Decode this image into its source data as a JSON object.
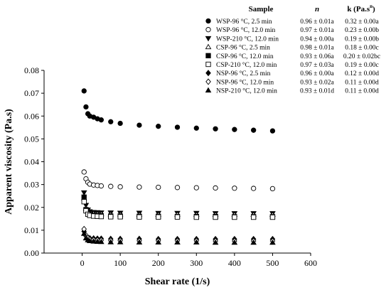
{
  "chart_data": {
    "type": "scatter",
    "title": "",
    "xlabel": "Shear rate (1/s)",
    "ylabel": "Apparent viscosity (Pa.s)",
    "xlim": [
      -100,
      600
    ],
    "ylim": [
      0,
      0.08
    ],
    "xticks": [
      "0",
      "100",
      "200",
      "300",
      "400",
      "500",
      "600"
    ],
    "yticks": [
      "0.00",
      "0.01",
      "0.02",
      "0.03",
      "0.04",
      "0.05",
      "0.06",
      "0.07",
      "0.08"
    ],
    "legend": {
      "placement": "top-right",
      "headers": {
        "sample": "Sample",
        "n": "n",
        "k_base": "k (Pa.s",
        "k_sup": "n",
        "k_close": ")"
      }
    },
    "series": [
      {
        "name": "WSP-96 °C, 2.5 min",
        "n": "0.96 ± 0.01a",
        "k": "0.32 ± 0.00a",
        "marker": "circle",
        "filled": true,
        "x": [
          5,
          10,
          15,
          20,
          30,
          40,
          50,
          75,
          100,
          150,
          200,
          250,
          300,
          350,
          400,
          450,
          500
        ],
        "y": [
          0.071,
          0.064,
          0.061,
          0.06,
          0.0595,
          0.0588,
          0.0583,
          0.0575,
          0.0568,
          0.056,
          0.0555,
          0.0551,
          0.0547,
          0.0544,
          0.0541,
          0.0538,
          0.0535
        ]
      },
      {
        "name": "WSP-96 °C, 12.0 min",
        "n": "0.97 ± 0.01a",
        "k": "0.23 ± 0.00b",
        "marker": "circle",
        "filled": false,
        "x": [
          5,
          10,
          15,
          20,
          30,
          40,
          50,
          75,
          100,
          150,
          200,
          250,
          300,
          350,
          400,
          450,
          500
        ],
        "y": [
          0.0355,
          0.0325,
          0.031,
          0.0302,
          0.0298,
          0.0296,
          0.0294,
          0.0292,
          0.029,
          0.0289,
          0.0288,
          0.0287,
          0.0286,
          0.0285,
          0.0284,
          0.0283,
          0.0282
        ]
      },
      {
        "name": "WSP-210 °C, 12.0 min",
        "n": "0.94 ± 0.00a",
        "k": "0.19 ± 0.00b",
        "marker": "triangle-down",
        "filled": true,
        "x": [
          5,
          10,
          15,
          20,
          30,
          40,
          50,
          75,
          100,
          150,
          200,
          250,
          300,
          350,
          400,
          450,
          500
        ],
        "y": [
          0.0265,
          0.021,
          0.019,
          0.0182,
          0.0179,
          0.0178,
          0.0177,
          0.0177,
          0.0176,
          0.0176,
          0.0175,
          0.0175,
          0.0175,
          0.0174,
          0.0174,
          0.0174,
          0.0174
        ]
      },
      {
        "name": "CSP-96 °C, 2.5 min",
        "n": "0.98 ± 0.01a",
        "k": "0.18 ± 0.00c",
        "marker": "triangle-up",
        "filled": false,
        "x": [
          5,
          10,
          15,
          20,
          30,
          40,
          50,
          75,
          100,
          150,
          200,
          250,
          300,
          350,
          400,
          450,
          500
        ],
        "y": [
          0.024,
          0.0195,
          0.0182,
          0.0176,
          0.0173,
          0.0172,
          0.0171,
          0.017,
          0.017,
          0.0169,
          0.0169,
          0.0169,
          0.0168,
          0.0168,
          0.0168,
          0.0168,
          0.0168
        ]
      },
      {
        "name": "CSP-96 °C, 12.0 min",
        "n": "0.93 ± 0.06a",
        "k": "0.20 ± 0.02bc",
        "marker": "square",
        "filled": true,
        "x": [
          5,
          10,
          15,
          20,
          30,
          40,
          50,
          75,
          100,
          150,
          200,
          250,
          300,
          350,
          400,
          450,
          500
        ],
        "y": [
          0.0245,
          0.019,
          0.0175,
          0.0168,
          0.0165,
          0.0164,
          0.0163,
          0.0162,
          0.0162,
          0.0161,
          0.0161,
          0.016,
          0.016,
          0.016,
          0.0159,
          0.0159,
          0.0159
        ]
      },
      {
        "name": "CSP-210 °C, 12.0 min",
        "n": "0.97 ± 0.03a",
        "k": "0.19 ± 0.00c",
        "marker": "square",
        "filled": false,
        "x": [
          5,
          10,
          15,
          20,
          30,
          40,
          50,
          75,
          100,
          150,
          200,
          250,
          300,
          350,
          400,
          450,
          500
        ],
        "y": [
          0.0225,
          0.0185,
          0.017,
          0.0165,
          0.0162,
          0.0161,
          0.016,
          0.0159,
          0.0159,
          0.0158,
          0.0158,
          0.0158,
          0.0157,
          0.0157,
          0.0157,
          0.0157,
          0.0157
        ]
      },
      {
        "name": "NSP-96 °C, 2.5 min",
        "n": "0.96 ± 0.00a",
        "k": "0.12 ± 0.00d",
        "marker": "diamond",
        "filled": true,
        "x": [
          5,
          10,
          15,
          20,
          30,
          40,
          50,
          75,
          100,
          150,
          200,
          250,
          300,
          350,
          400,
          450,
          500
        ],
        "y": [
          0.0095,
          0.0075,
          0.0068,
          0.0065,
          0.0064,
          0.0063,
          0.0063,
          0.0062,
          0.0062,
          0.0062,
          0.0061,
          0.0061,
          0.0061,
          0.0061,
          0.0061,
          0.0061,
          0.0061
        ]
      },
      {
        "name": "NSP-96 °C, 12.0 min",
        "n": "0.93 ± 0.02a",
        "k": "0.11 ± 0.00d",
        "marker": "diamond",
        "filled": false,
        "x": [
          5,
          10,
          15,
          20,
          30,
          40,
          50,
          75,
          100,
          150,
          200,
          250,
          300,
          350,
          400,
          450,
          500
        ],
        "y": [
          0.0105,
          0.0078,
          0.0066,
          0.006,
          0.0058,
          0.0057,
          0.0056,
          0.0055,
          0.0055,
          0.0054,
          0.0054,
          0.0054,
          0.0054,
          0.0053,
          0.0053,
          0.0053,
          0.0053
        ]
      },
      {
        "name": "NSP-210 °C, 12.0 min",
        "n": "0.93 ± 0.01d",
        "k": "0.11 ± 0.00d",
        "marker": "triangle-up",
        "filled": true,
        "x": [
          5,
          10,
          15,
          20,
          30,
          40,
          50,
          75,
          100,
          150,
          200,
          250,
          300,
          350,
          400,
          450,
          500
        ],
        "y": [
          0.0085,
          0.0065,
          0.0057,
          0.0053,
          0.0051,
          0.005,
          0.0049,
          0.0048,
          0.0048,
          0.0047,
          0.0047,
          0.0047,
          0.0047,
          0.0046,
          0.0046,
          0.0046,
          0.0046
        ]
      }
    ]
  }
}
